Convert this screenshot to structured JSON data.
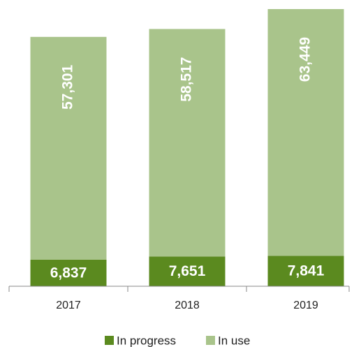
{
  "chart_data": {
    "type": "stacked_bar",
    "categories": [
      "2017",
      "2018",
      "2019"
    ],
    "series": [
      {
        "name": "In progress",
        "color": "#5b8a1f",
        "values": [
          6837,
          7651,
          7841
        ],
        "value_labels": [
          "6,837",
          "7,651",
          "7,841"
        ]
      },
      {
        "name": "In use",
        "color": "#a9c48b",
        "values": [
          57301,
          58517,
          63449
        ],
        "value_labels": [
          "57,301",
          "58,517",
          "63,449"
        ]
      }
    ]
  }
}
